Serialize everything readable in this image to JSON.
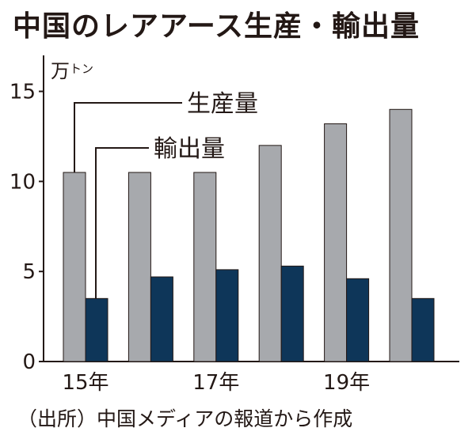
{
  "chart_data": {
    "type": "bar",
    "title": "中国のレアアース生産・輸出量",
    "unit": "万トン",
    "unit_main": "万",
    "unit_sub": "トン",
    "categories": [
      "2015",
      "2016",
      "2017",
      "2018",
      "2019",
      "2020"
    ],
    "x_tick_labels": [
      "15年",
      "",
      "17年",
      "",
      "19年",
      ""
    ],
    "y_ticks": [
      "0",
      "5",
      "10",
      "15"
    ],
    "ylim": [
      0,
      17
    ],
    "series": [
      {
        "name": "生産量",
        "values": [
          10.5,
          10.5,
          10.5,
          12.0,
          13.2,
          14.0
        ]
      },
      {
        "name": "輸出量",
        "values": [
          3.5,
          4.7,
          5.1,
          5.3,
          4.6,
          3.5
        ]
      }
    ],
    "grid": false,
    "source": "（出所）中国メディアの報道から作成",
    "colors": {
      "production": "#a7a9ad",
      "export": "#0e3659",
      "outline": "#231815"
    }
  }
}
